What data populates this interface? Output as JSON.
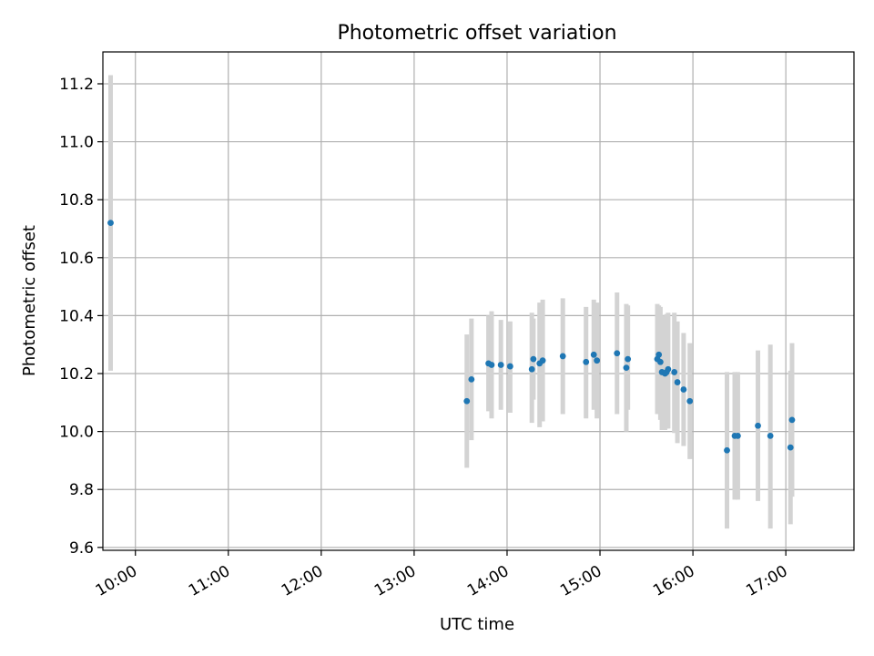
{
  "chart_data": {
    "type": "scatter",
    "title": "Photometric offset variation",
    "xlabel": "UTC time",
    "ylabel": "Photometric offset",
    "x_is_time": true,
    "xlim": [
      "09:39",
      "17:44"
    ],
    "ylim": [
      9.59,
      11.31
    ],
    "grid": true,
    "x_ticks": [
      "10:00",
      "11:00",
      "12:00",
      "13:00",
      "14:00",
      "15:00",
      "16:00",
      "17:00"
    ],
    "y_ticks": [
      9.6,
      9.8,
      10.0,
      10.2,
      10.4,
      10.6,
      10.8,
      11.0,
      11.2
    ],
    "y_tick_labels": [
      "9.6",
      "9.8",
      "10.0",
      "10.2",
      "10.4",
      "10.6",
      "10.8",
      "11.0",
      "11.2"
    ],
    "colors": {
      "points": "#1f77b4",
      "error_bars": "#d3d3d3",
      "grid": "#b0b0b0"
    },
    "points": [
      {
        "x": "09:44",
        "y": 10.72,
        "lo": 10.21,
        "hi": 11.23
      },
      {
        "x": "13:34",
        "y": 10.105,
        "lo": 9.875,
        "hi": 10.335
      },
      {
        "x": "13:37",
        "y": 10.18,
        "lo": 9.97,
        "hi": 10.39
      },
      {
        "x": "13:48",
        "y": 10.235,
        "lo": 10.07,
        "hi": 10.4
      },
      {
        "x": "13:50",
        "y": 10.23,
        "lo": 10.045,
        "hi": 10.415
      },
      {
        "x": "13:56",
        "y": 10.23,
        "lo": 10.075,
        "hi": 10.385
      },
      {
        "x": "14:02",
        "y": 10.225,
        "lo": 10.065,
        "hi": 10.38
      },
      {
        "x": "14:16",
        "y": 10.215,
        "lo": 10.03,
        "hi": 10.41
      },
      {
        "x": "14:17",
        "y": 10.25,
        "lo": 10.11,
        "hi": 10.39
      },
      {
        "x": "14:21",
        "y": 10.235,
        "lo": 10.015,
        "hi": 10.445
      },
      {
        "x": "14:23",
        "y": 10.245,
        "lo": 10.035,
        "hi": 10.455
      },
      {
        "x": "14:36",
        "y": 10.26,
        "lo": 10.06,
        "hi": 10.46
      },
      {
        "x": "14:51",
        "y": 10.24,
        "lo": 10.045,
        "hi": 10.43
      },
      {
        "x": "14:56",
        "y": 10.265,
        "lo": 10.075,
        "hi": 10.455
      },
      {
        "x": "14:58",
        "y": 10.245,
        "lo": 10.045,
        "hi": 10.445
      },
      {
        "x": "15:11",
        "y": 10.27,
        "lo": 10.06,
        "hi": 10.48
      },
      {
        "x": "15:17",
        "y": 10.22,
        "lo": 10.0,
        "hi": 10.44
      },
      {
        "x": "15:18",
        "y": 10.25,
        "lo": 10.075,
        "hi": 10.435
      },
      {
        "x": "15:37",
        "y": 10.25,
        "lo": 10.06,
        "hi": 10.44
      },
      {
        "x": "15:38",
        "y": 10.265,
        "lo": 10.09,
        "hi": 10.435
      },
      {
        "x": "15:39",
        "y": 10.24,
        "lo": 10.04,
        "hi": 10.43
      },
      {
        "x": "15:40",
        "y": 10.205,
        "lo": 10.005,
        "hi": 10.4
      },
      {
        "x": "15:42",
        "y": 10.2,
        "lo": 10.005,
        "hi": 10.4
      },
      {
        "x": "15:43",
        "y": 10.205,
        "lo": 10.01,
        "hi": 10.405
      },
      {
        "x": "15:44",
        "y": 10.215,
        "lo": 10.01,
        "hi": 10.41
      },
      {
        "x": "15:48",
        "y": 10.205,
        "lo": 9.995,
        "hi": 10.41
      },
      {
        "x": "15:50",
        "y": 10.17,
        "lo": 9.96,
        "hi": 10.38
      },
      {
        "x": "15:54",
        "y": 10.145,
        "lo": 9.95,
        "hi": 10.34
      },
      {
        "x": "15:58",
        "y": 10.105,
        "lo": 9.905,
        "hi": 10.305
      },
      {
        "x": "16:22",
        "y": 9.935,
        "lo": 9.665,
        "hi": 10.205
      },
      {
        "x": "16:27",
        "y": 9.985,
        "lo": 9.765,
        "hi": 10.205
      },
      {
        "x": "16:29",
        "y": 9.985,
        "lo": 9.765,
        "hi": 10.205
      },
      {
        "x": "16:42",
        "y": 10.02,
        "lo": 9.76,
        "hi": 10.28
      },
      {
        "x": "16:50",
        "y": 9.985,
        "lo": 9.665,
        "hi": 10.3
      },
      {
        "x": "17:03",
        "y": 9.945,
        "lo": 9.68,
        "hi": 10.21
      },
      {
        "x": "17:04",
        "y": 10.04,
        "lo": 9.775,
        "hi": 10.305
      }
    ]
  }
}
